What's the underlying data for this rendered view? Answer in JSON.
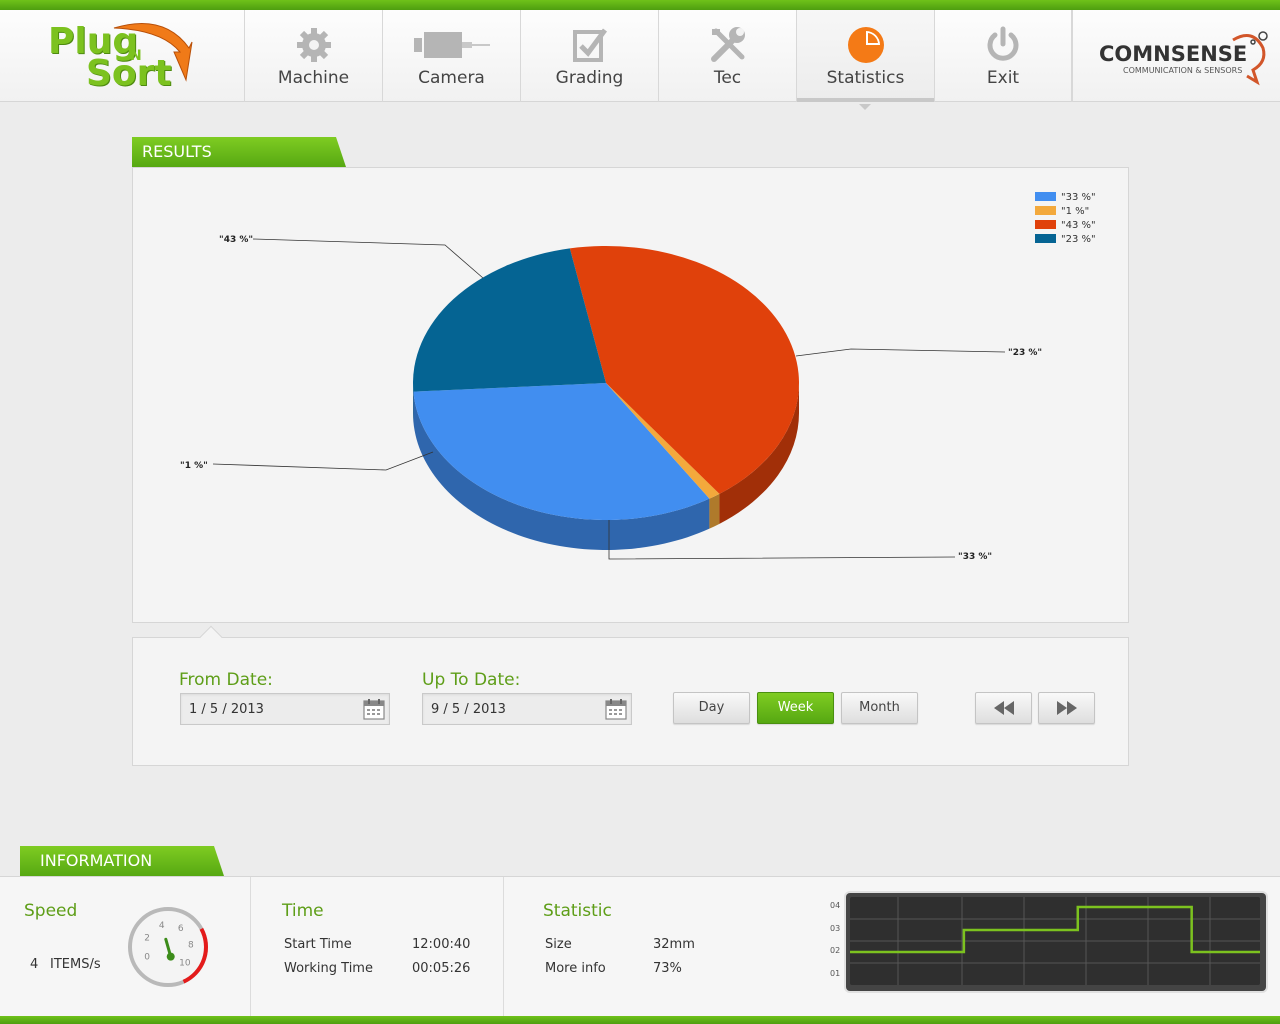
{
  "logo": {
    "line1": "Plug",
    "n": "N",
    "line2": "Sort"
  },
  "nav": {
    "items": [
      {
        "label": "Machine",
        "icon": "gear-icon"
      },
      {
        "label": "Camera",
        "icon": "camera-icon"
      },
      {
        "label": "Grading",
        "icon": "checkbox-icon"
      },
      {
        "label": "Tec",
        "icon": "tools-icon"
      },
      {
        "label": "Statistics",
        "icon": "pie-chart-icon"
      },
      {
        "label": "Exit",
        "icon": "power-icon"
      }
    ],
    "active": "Statistics"
  },
  "partner": {
    "brand": "COMNSENSE",
    "tagline": "COMMUNICATION & SENSORS"
  },
  "results": {
    "title": "RESULTS"
  },
  "chart_data": {
    "type": "pie",
    "title": "",
    "slices": [
      {
        "label": "\"33 %\"",
        "value": 33,
        "color": "#418ef0"
      },
      {
        "label": "\"1 %\"",
        "value": 1,
        "color": "#f3a93c"
      },
      {
        "label": "\"43 %\"",
        "value": 43,
        "color": "#e0410b"
      },
      {
        "label": "\"23 %\"",
        "value": 23,
        "color": "#056493"
      }
    ],
    "legend_position": "top-right"
  },
  "dates": {
    "from_label": "From Date:",
    "from_value": "1 / 5 / 2013",
    "to_label": "Up To Date:",
    "to_value": "9 / 5 / 2013"
  },
  "period_buttons": {
    "day": "Day",
    "week": "Week",
    "month": "Month",
    "active": "Week"
  },
  "information": {
    "title": "INFORMATION",
    "speed": {
      "title": "Speed",
      "value": "4",
      "unit": "ITEMS/s",
      "gauge_ticks": [
        "0",
        "2",
        "4",
        "6",
        "8",
        "10"
      ],
      "gauge_value": 4
    },
    "time": {
      "title": "Time",
      "start_label": "Start Time",
      "start_value": "12:00:40",
      "working_label": "Working Time",
      "working_value": "00:05:26"
    },
    "statistic": {
      "title": "Statistic",
      "size_label": "Size",
      "size_value": "32mm",
      "more_label": "More info",
      "more_value": "73%"
    },
    "mini_chart": {
      "type": "line",
      "y_ticks": [
        "04",
        "03",
        "02",
        "01"
      ],
      "steps": [
        2,
        2,
        2,
        2,
        2,
        3,
        3,
        3,
        3,
        3,
        4,
        4,
        4,
        4,
        4,
        2,
        2,
        2
      ],
      "color": "#7cc21f"
    }
  }
}
